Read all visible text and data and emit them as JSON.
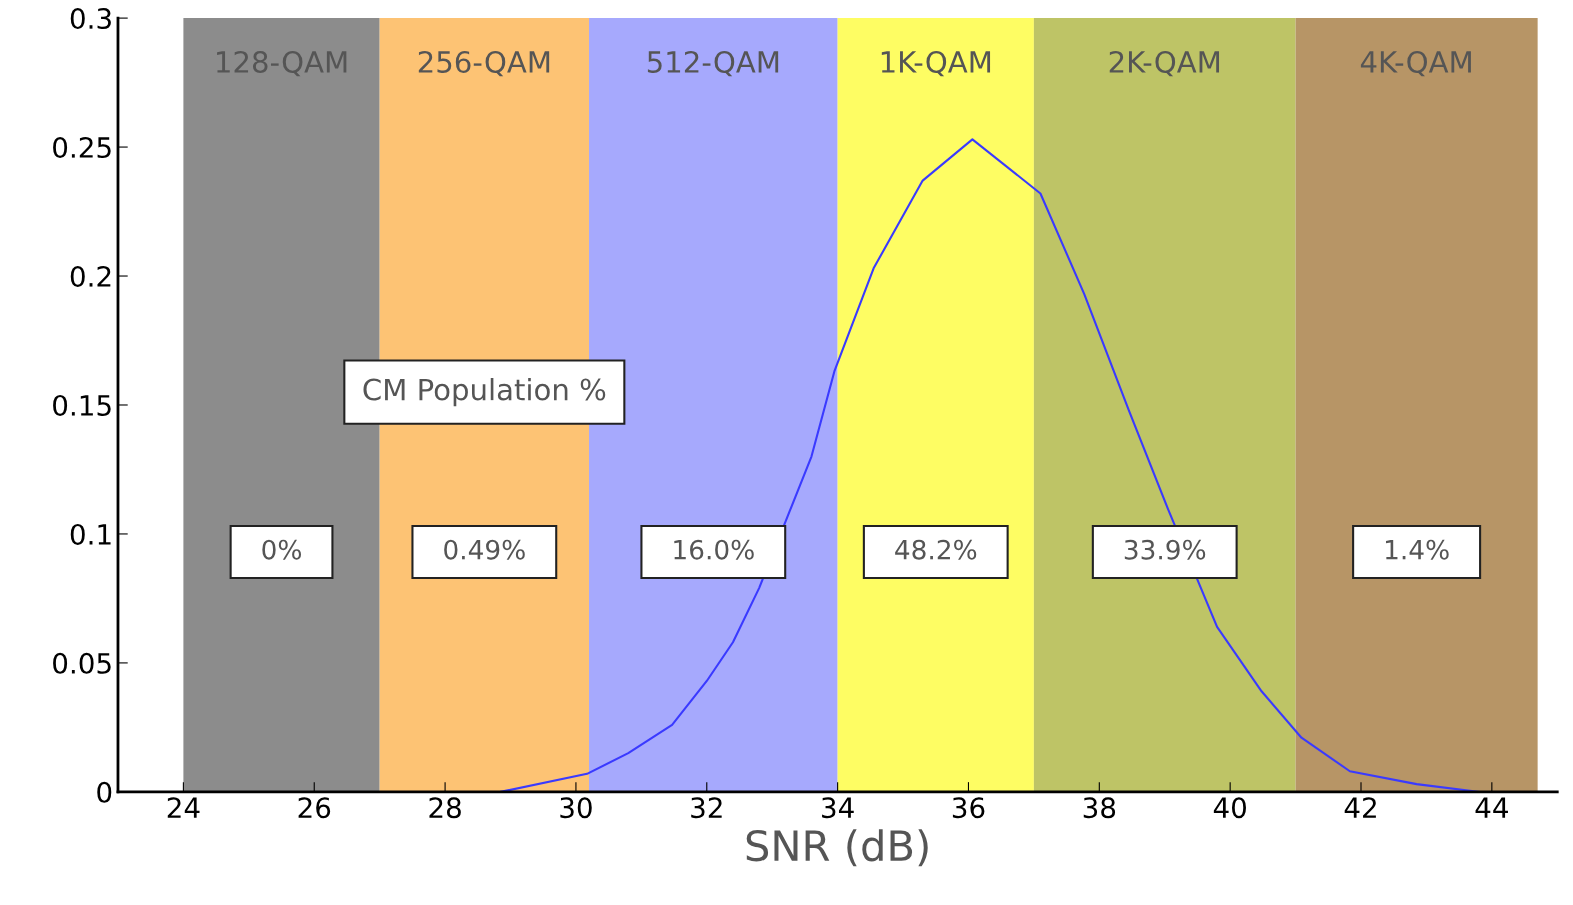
{
  "chart_data": {
    "type": "line",
    "xlabel": "SNR (dB)",
    "xlim": [
      23,
      45
    ],
    "xticks": [
      24,
      26,
      28,
      30,
      32,
      34,
      36,
      38,
      40,
      42,
      44
    ],
    "ylim": [
      0,
      0.3
    ],
    "yticks": [
      0,
      0.05,
      0.1,
      0.15,
      0.2,
      0.25,
      0.3
    ],
    "grid": false,
    "legend": false,
    "marker": "none",
    "line_style": "solid",
    "series": [
      {
        "color": "#3a3aff",
        "x": [
          28.85,
          30.17,
          30.8,
          31.47,
          32.0,
          32.4,
          32.8,
          33.27,
          33.6,
          33.95,
          34.55,
          35.3,
          36.06,
          37.1,
          37.77,
          38.45,
          39.06,
          39.8,
          40.48,
          41.09,
          41.83,
          42.85,
          43.8
        ],
        "values": [
          0.0,
          0.007,
          0.015,
          0.026,
          0.043,
          0.058,
          0.079,
          0.109,
          0.13,
          0.163,
          0.203,
          0.237,
          0.253,
          0.232,
          0.193,
          0.148,
          0.109,
          0.064,
          0.039,
          0.021,
          0.008,
          0.003,
          0.0
        ]
      }
    ],
    "bands": [
      {
        "axis": "x",
        "from": 24,
        "to": 27,
        "label": "128-QAM",
        "color": "#8c8c8c"
      },
      {
        "axis": "x",
        "from": 27,
        "to": 30.2,
        "label": "256-QAM",
        "color": "#fdc374"
      },
      {
        "axis": "x",
        "from": 30.2,
        "to": 34,
        "label": "512-QAM",
        "color": "#a6a9fd"
      },
      {
        "axis": "x",
        "from": 34,
        "to": 37,
        "label": "1K-QAM",
        "color": "#fefd63"
      },
      {
        "axis": "x",
        "from": 37,
        "to": 41,
        "label": "2K-QAM",
        "color": "#bec466"
      },
      {
        "axis": "x",
        "from": 41,
        "to": 44.7,
        "label": "4K-QAM",
        "color": "#b79566"
      }
    ],
    "annotations": [
      "CM Population %",
      "0%",
      "0.49%",
      "16.0%",
      "48.2%",
      "33.9%",
      "1.4%"
    ]
  }
}
